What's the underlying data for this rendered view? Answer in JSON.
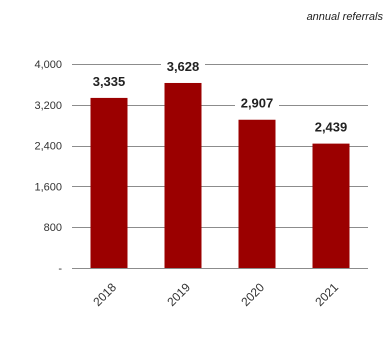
{
  "chart_data": {
    "type": "bar",
    "title": "",
    "subtitle": "annual referrals",
    "xlabel": "",
    "ylabel": "",
    "categories": [
      "2018",
      "2019",
      "2020",
      "2021"
    ],
    "values": [
      3335,
      3628,
      2907,
      2439
    ],
    "value_labels": [
      "3,335",
      "3,628",
      "2,907",
      "2,439"
    ],
    "ylim": [
      0,
      4000
    ],
    "y_ticks": [
      0,
      800,
      1600,
      2400,
      3200,
      4000
    ],
    "y_tick_labels": [
      "-",
      "800",
      "1,600",
      "2,400",
      "3,200",
      "4,000"
    ],
    "grid": true,
    "legend": "none",
    "bar_color": "#9b0000"
  }
}
